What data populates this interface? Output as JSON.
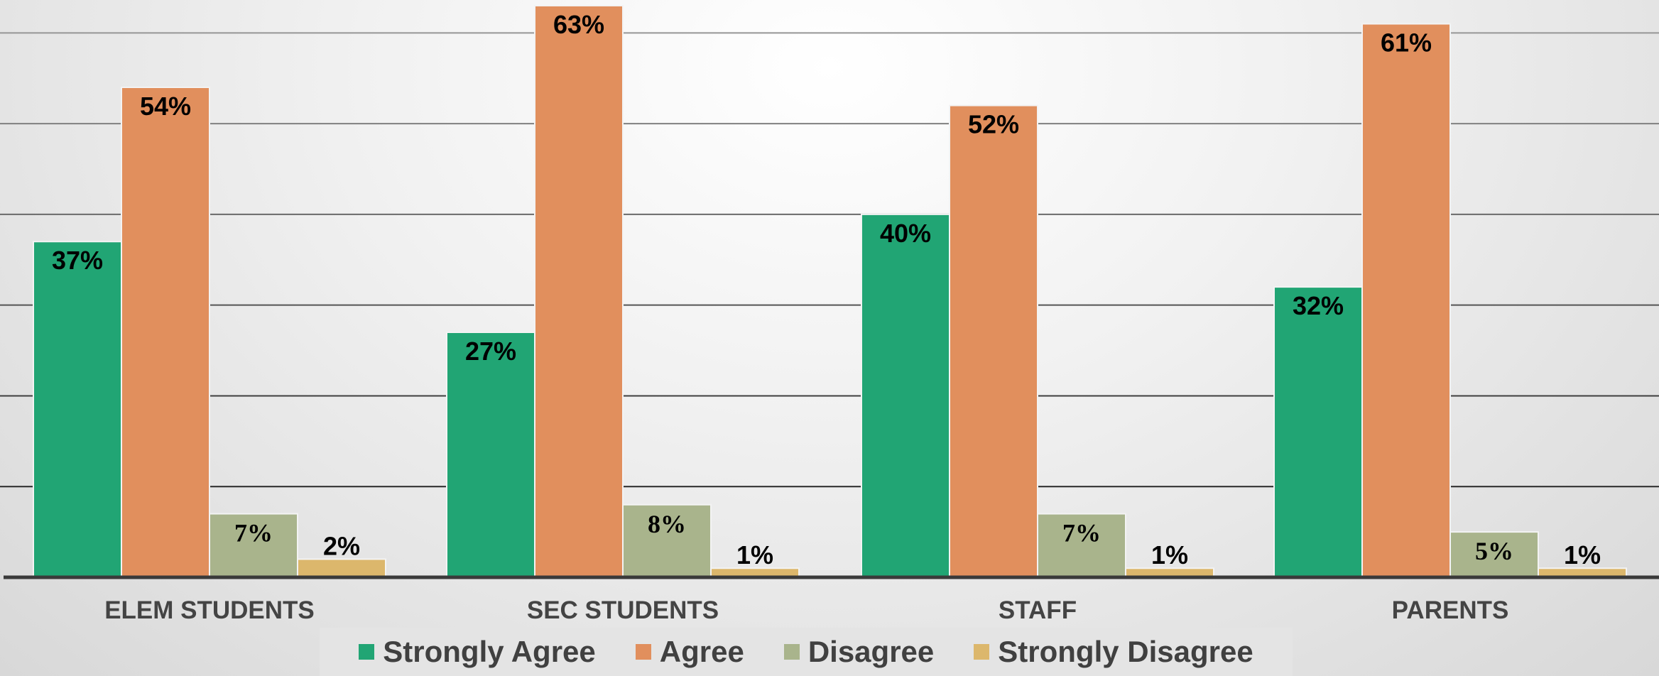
{
  "chart_data": {
    "type": "bar",
    "categories": [
      "ELEM STUDENTS",
      "SEC STUDENTS",
      "STAFF",
      "PARENTS"
    ],
    "series": [
      {
        "name": "Strongly Agree",
        "color": "#21a574",
        "values": [
          37,
          27,
          40,
          32
        ]
      },
      {
        "name": "Agree",
        "color": "#e18f5d",
        "values": [
          54,
          63,
          52,
          61
        ]
      },
      {
        "name": "Disagree",
        "color": "#a9b48c",
        "values": [
          7,
          8,
          7,
          5
        ]
      },
      {
        "name": "Strongly Disagree",
        "color": "#dcb76c",
        "values": [
          2,
          1,
          1,
          1
        ]
      }
    ],
    "value_labels": [
      [
        "37%",
        "27%",
        "40%",
        "32%"
      ],
      [
        "54%",
        "63%",
        "52%",
        "61%"
      ],
      [
        "7%",
        "8%",
        "7%",
        "5%"
      ],
      [
        "2%",
        "1%",
        "1%",
        "1%"
      ]
    ],
    "ylim": [
      0,
      63
    ],
    "gridlines": [
      10,
      20,
      30,
      40,
      50,
      60
    ],
    "grid": true,
    "legend_position": "bottom",
    "title": "",
    "xlabel": "",
    "ylabel": ""
  }
}
